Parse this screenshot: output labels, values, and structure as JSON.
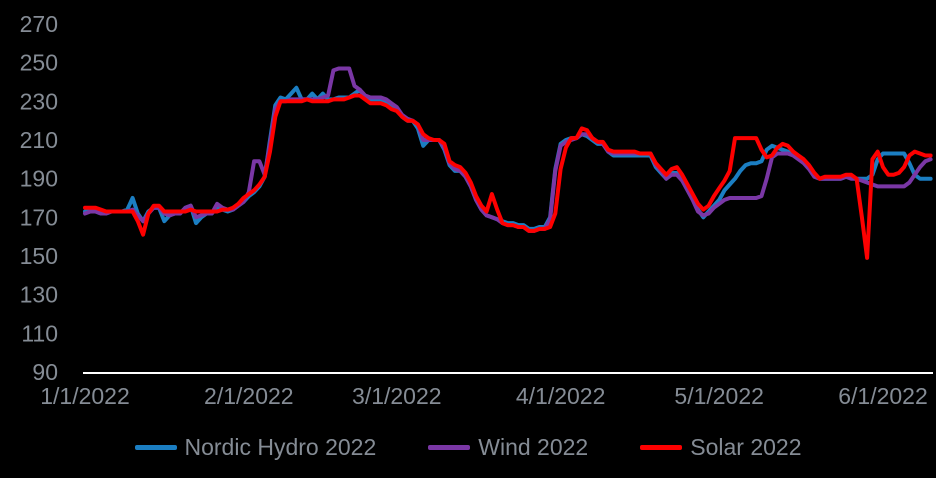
{
  "chart_data": {
    "type": "line",
    "title": "",
    "xlabel": "",
    "ylabel": "",
    "ylim": [
      90,
      270
    ],
    "y_ticks": [
      90,
      110,
      130,
      150,
      170,
      190,
      210,
      230,
      250,
      270
    ],
    "x_unit": "day-index from 1/1/2022, daily data",
    "x_ticks": [
      {
        "label": "1/1/2022",
        "day": 0
      },
      {
        "label": "2/1/2022",
        "day": 31
      },
      {
        "label": "3/1/2022",
        "day": 59
      },
      {
        "label": "4/1/2022",
        "day": 90
      },
      {
        "label": "5/1/2022",
        "day": 120
      },
      {
        "label": "6/1/2022",
        "day": 151
      }
    ],
    "grid": false,
    "legend_position": "bottom",
    "background_color": "#000000",
    "axis_line_color": "#ffffff",
    "tick_label_color": "#858c95",
    "series": [
      {
        "name": "Nordic Hydro 2022",
        "color": "#1b7ec2",
        "values": [
          173,
          173,
          173,
          172,
          172,
          173,
          173,
          173,
          174,
          180,
          172,
          168,
          173,
          175,
          175,
          168,
          171,
          172,
          172,
          175,
          176,
          167,
          170,
          172,
          172,
          175,
          174,
          173,
          174,
          176,
          178,
          181,
          183,
          186,
          191,
          210,
          228,
          232,
          231,
          234,
          237,
          231,
          231,
          234,
          231,
          234,
          231,
          231,
          232,
          232,
          232,
          234,
          236,
          232,
          231,
          231,
          231,
          230,
          228,
          226,
          222,
          220,
          220,
          216,
          207,
          210,
          210,
          210,
          205,
          197,
          194,
          194,
          191,
          186,
          179,
          174,
          171,
          170,
          169,
          168,
          167,
          167,
          166,
          166,
          164,
          164,
          165,
          165,
          170,
          195,
          208,
          210,
          211,
          211,
          213,
          212,
          210,
          208,
          208,
          204,
          202,
          202,
          202,
          202,
          202,
          202,
          202,
          202,
          196,
          193,
          190,
          193,
          193,
          190,
          185,
          180,
          174,
          170,
          173,
          176,
          179,
          184,
          187,
          190,
          194,
          197,
          198,
          198,
          199,
          205,
          207,
          206,
          205,
          204,
          203,
          201,
          199,
          196,
          192,
          190,
          190,
          190,
          190,
          190,
          191,
          191,
          190,
          190,
          190,
          192,
          200,
          203,
          203,
          203,
          203,
          203,
          198,
          192,
          190,
          190,
          190
        ]
      },
      {
        "name": "Wind 2022",
        "color": "#7a37a5",
        "values": [
          172,
          173,
          173,
          172,
          172,
          173,
          173,
          173,
          173,
          174,
          171,
          168,
          172,
          175,
          175,
          172,
          171,
          172,
          172,
          175,
          176,
          170,
          171,
          172,
          172,
          177,
          175,
          174,
          174,
          176,
          178,
          183,
          199,
          199,
          192,
          208,
          226,
          230,
          230,
          231,
          231,
          231,
          231,
          231,
          231,
          232,
          233,
          246,
          247,
          247,
          247,
          238,
          236,
          233,
          232,
          232,
          232,
          231,
          229,
          227,
          223,
          221,
          220,
          218,
          210,
          210,
          210,
          210,
          206,
          198,
          195,
          194,
          191,
          186,
          179,
          174,
          171,
          170,
          169,
          167,
          166,
          166,
          165,
          165,
          163,
          163,
          164,
          164,
          169,
          194,
          207,
          209,
          210,
          211,
          213,
          213,
          211,
          209,
          208,
          204,
          203,
          203,
          203,
          203,
          203,
          203,
          203,
          203,
          197,
          194,
          190,
          192,
          192,
          189,
          184,
          179,
          173,
          171,
          172,
          175,
          177,
          179,
          180,
          180,
          180,
          180,
          180,
          180,
          181,
          190,
          201,
          203,
          203,
          203,
          202,
          200,
          198,
          195,
          191,
          190,
          190,
          190,
          190,
          190,
          191,
          190,
          190,
          189,
          188,
          187,
          186,
          186,
          186,
          186,
          186,
          186,
          188,
          192,
          196,
          199,
          200
        ]
      },
      {
        "name": "Solar 2022",
        "color": "#fe0000",
        "values": [
          175,
          175,
          175,
          174,
          173,
          173,
          173,
          173,
          173,
          173,
          168,
          161,
          172,
          176,
          176,
          173,
          173,
          173,
          173,
          173,
          174,
          173,
          173,
          173,
          173,
          173,
          174,
          174,
          175,
          177,
          180,
          182,
          184,
          187,
          191,
          204,
          222,
          230,
          230,
          230,
          230,
          230,
          231,
          230,
          230,
          230,
          230,
          231,
          231,
          231,
          232,
          233,
          233,
          231,
          229,
          229,
          229,
          228,
          226,
          225,
          222,
          220,
          220,
          218,
          213,
          211,
          210,
          210,
          208,
          199,
          197,
          196,
          193,
          188,
          181,
          176,
          173,
          182,
          174,
          167,
          166,
          166,
          165,
          165,
          163,
          163,
          164,
          164,
          165,
          172,
          195,
          206,
          211,
          211,
          216,
          215,
          211,
          209,
          209,
          205,
          204,
          204,
          204,
          204,
          204,
          203,
          203,
          203,
          198,
          195,
          192,
          195,
          196,
          192,
          187,
          182,
          177,
          174,
          176,
          181,
          185,
          189,
          194,
          211,
          211,
          211,
          211,
          211,
          205,
          201,
          202,
          206,
          208,
          207,
          204,
          202,
          200,
          197,
          193,
          190,
          191,
          191,
          191,
          191,
          192,
          192,
          190,
          170,
          149,
          200,
          204,
          196,
          192,
          192,
          193,
          196,
          202,
          204,
          203,
          202,
          202
        ]
      }
    ]
  }
}
